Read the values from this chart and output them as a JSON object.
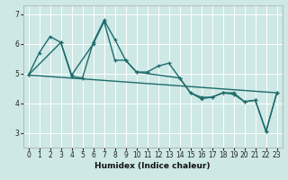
{
  "title": "",
  "xlabel": "Humidex (Indice chaleur)",
  "bg_color": "#cde8e5",
  "grid_color": "#ffffff",
  "line_color": "#1e6b6b",
  "xlim": [
    -0.5,
    23.5
  ],
  "ylim": [
    2.5,
    7.3
  ],
  "yticks": [
    3,
    4,
    5,
    6,
    7
  ],
  "xticks": [
    0,
    1,
    2,
    3,
    4,
    5,
    6,
    7,
    8,
    9,
    10,
    11,
    12,
    13,
    14,
    15,
    16,
    17,
    18,
    19,
    20,
    21,
    22,
    23
  ],
  "line1_x": [
    0,
    1,
    2,
    3,
    4,
    5,
    6,
    7,
    8,
    9,
    10,
    11,
    12,
    13,
    14,
    15,
    16,
    17,
    18,
    19,
    20,
    21,
    22,
    23
  ],
  "line1_y": [
    4.95,
    5.7,
    6.25,
    6.05,
    4.9,
    4.85,
    6.05,
    6.8,
    6.15,
    5.45,
    5.05,
    5.05,
    5.25,
    5.35,
    4.85,
    4.35,
    4.2,
    4.2,
    4.35,
    4.3,
    4.05,
    4.1,
    3.05,
    4.35
  ],
  "line2_x": [
    0,
    3,
    4,
    6,
    7,
    8,
    9,
    10,
    14,
    15,
    16,
    17,
    18,
    19,
    20,
    21,
    22,
    23
  ],
  "line2_y": [
    4.95,
    6.05,
    4.95,
    6.0,
    6.75,
    5.45,
    5.45,
    5.05,
    4.85,
    4.35,
    4.15,
    4.2,
    4.35,
    4.35,
    4.05,
    4.1,
    3.05,
    4.35
  ],
  "line3_x": [
    0,
    23
  ],
  "line3_y": [
    4.95,
    4.35
  ]
}
